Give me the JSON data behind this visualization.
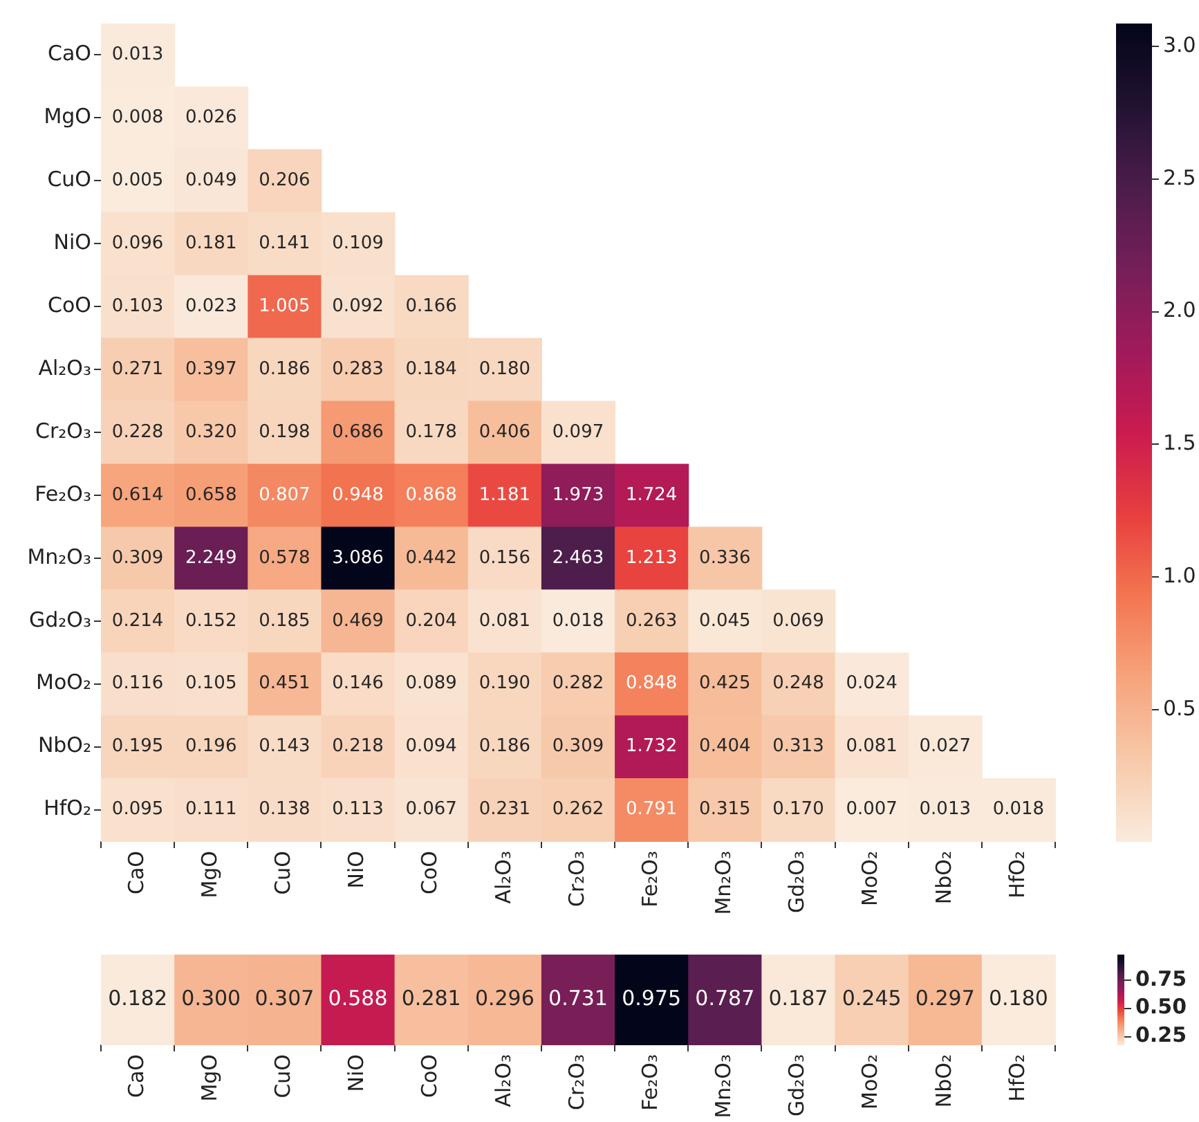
{
  "chart_data": [
    {
      "type": "heatmap",
      "categories": [
        "CaO",
        "MgO",
        "CuO",
        "NiO",
        "CoO",
        "Al₂O₃",
        "Cr₂O₃",
        "Fe₂O₃",
        "Mn₂O₃",
        "Gd₂O₃",
        "MoO₂",
        "NbO₂",
        "HfO₂"
      ],
      "y_categories": [
        "CaO",
        "MgO",
        "CuO",
        "NiO",
        "CoO",
        "Al₂O₃",
        "Cr₂O₃",
        "Fe₂O₃",
        "Mn₂O₃",
        "Gd₂O₃",
        "MoO₂",
        "NbO₂",
        "HfO₂"
      ],
      "cells": [
        [
          0.013,
          null,
          null,
          null,
          null,
          null,
          null,
          null,
          null,
          null,
          null,
          null,
          null
        ],
        [
          0.008,
          0.026,
          null,
          null,
          null,
          null,
          null,
          null,
          null,
          null,
          null,
          null,
          null
        ],
        [
          0.005,
          0.049,
          0.206,
          null,
          null,
          null,
          null,
          null,
          null,
          null,
          null,
          null,
          null
        ],
        [
          0.096,
          0.181,
          0.141,
          0.109,
          null,
          null,
          null,
          null,
          null,
          null,
          null,
          null,
          null
        ],
        [
          0.103,
          0.023,
          1.005,
          0.092,
          0.166,
          null,
          null,
          null,
          null,
          null,
          null,
          null,
          null
        ],
        [
          0.271,
          0.397,
          0.186,
          0.283,
          0.184,
          0.18,
          null,
          null,
          null,
          null,
          null,
          null,
          null
        ],
        [
          0.228,
          0.32,
          0.198,
          0.686,
          0.178,
          0.406,
          0.097,
          null,
          null,
          null,
          null,
          null,
          null
        ],
        [
          0.614,
          0.658,
          0.807,
          0.948,
          0.868,
          1.181,
          1.973,
          1.724,
          null,
          null,
          null,
          null,
          null
        ],
        [
          0.309,
          2.249,
          0.578,
          3.086,
          0.442,
          0.156,
          2.463,
          1.213,
          0.336,
          null,
          null,
          null,
          null
        ],
        [
          0.214,
          0.152,
          0.185,
          0.469,
          0.204,
          0.081,
          0.018,
          0.263,
          0.045,
          0.069,
          null,
          null,
          null
        ],
        [
          0.116,
          0.105,
          0.451,
          0.146,
          0.089,
          0.19,
          0.282,
          0.848,
          0.425,
          0.248,
          0.024,
          null,
          null
        ],
        [
          0.195,
          0.196,
          0.143,
          0.218,
          0.094,
          0.186,
          0.309,
          1.732,
          0.404,
          0.313,
          0.081,
          0.027,
          null
        ],
        [
          0.095,
          0.111,
          0.138,
          0.113,
          0.067,
          0.231,
          0.262,
          0.791,
          0.315,
          0.17,
          0.007,
          0.013,
          0.018
        ]
      ],
      "cell_labels": [
        [
          "0.013",
          null,
          null,
          null,
          null,
          null,
          null,
          null,
          null,
          null,
          null,
          null,
          null
        ],
        [
          "0.008",
          "0.026",
          null,
          null,
          null,
          null,
          null,
          null,
          null,
          null,
          null,
          null,
          null
        ],
        [
          "0.005",
          "0.049",
          "0.206",
          null,
          null,
          null,
          null,
          null,
          null,
          null,
          null,
          null,
          null
        ],
        [
          "0.096",
          "0.181",
          "0.141",
          "0.109",
          null,
          null,
          null,
          null,
          null,
          null,
          null,
          null,
          null
        ],
        [
          "0.103",
          "0.023",
          "1.005",
          "0.092",
          "0.166",
          null,
          null,
          null,
          null,
          null,
          null,
          null,
          null
        ],
        [
          "0.271",
          "0.397",
          "0.186",
          "0.283",
          "0.184",
          "0.180",
          null,
          null,
          null,
          null,
          null,
          null,
          null
        ],
        [
          "0.228",
          "0.320",
          "0.198",
          "0.686",
          "0.178",
          "0.406",
          "0.097",
          null,
          null,
          null,
          null,
          null,
          null
        ],
        [
          "0.614",
          "0.658",
          "0.807",
          "0.948",
          "0.868",
          "1.181",
          "1.973",
          "1.724",
          null,
          null,
          null,
          null,
          null
        ],
        [
          "0.309",
          "2.249",
          "0.578",
          "3.086",
          "0.442",
          "0.156",
          "2.463",
          "1.213",
          "0.336",
          null,
          null,
          null,
          null
        ],
        [
          "0.214",
          "0.152",
          "0.185",
          "0.469",
          "0.204",
          "0.081",
          "0.018",
          "0.263",
          "0.045",
          "0.069",
          null,
          null,
          null
        ],
        [
          "0.116",
          "0.105",
          "0.451",
          "0.146",
          "0.089",
          "0.190",
          "0.282",
          "0.848",
          "0.425",
          "0.248",
          "0.024",
          null,
          null
        ],
        [
          "0.195",
          "0.196",
          "0.143",
          "0.218",
          "0.094",
          "0.186",
          "0.309",
          "1.732",
          "0.404",
          "0.313",
          "0.081",
          "0.027",
          null
        ],
        [
          "0.095",
          "0.111",
          "0.138",
          "0.113",
          "0.067",
          "0.231",
          "0.262",
          "0.791",
          "0.315",
          "0.170",
          "0.007",
          "0.013",
          "0.018"
        ]
      ],
      "clim": [
        0.005,
        3.086
      ],
      "cticks": [
        0.5,
        {
          "value": 1,
          "label": "1.0"
        },
        1.5,
        {
          "value": 2,
          "label": "2.0"
        },
        2.5,
        {
          "value": 3,
          "label": "3.0"
        }
      ]
    },
    {
      "type": "heatmap",
      "categories": [
        "CaO",
        "MgO",
        "CuO",
        "NiO",
        "CoO",
        "Al₂O₃",
        "Cr₂O₃",
        "Fe₂O₃",
        "Mn₂O₃",
        "Gd₂O₃",
        "MoO₂",
        "NbO₂",
        "HfO₂"
      ],
      "y_categories": [
        null
      ],
      "cells": [
        [
          0.182,
          0.3,
          0.307,
          0.588,
          0.281,
          0.296,
          0.731,
          0.975,
          0.787,
          0.187,
          0.245,
          0.297,
          0.18
        ]
      ],
      "cell_labels": [
        [
          "0.182",
          "0.300",
          "0.307",
          "0.588",
          "0.281",
          "0.296",
          "0.731",
          "0.975",
          "0.787",
          "0.187",
          "0.245",
          "0.297",
          "0.180"
        ]
      ],
      "clim": [
        0.18,
        0.975
      ],
      "cticks": [
        {
          "value": 0.25,
          "label": "0.25"
        },
        {
          "value": 0.5,
          "label": "0.50"
        },
        {
          "value": 0.75,
          "label": "0.75"
        }
      ]
    }
  ]
}
